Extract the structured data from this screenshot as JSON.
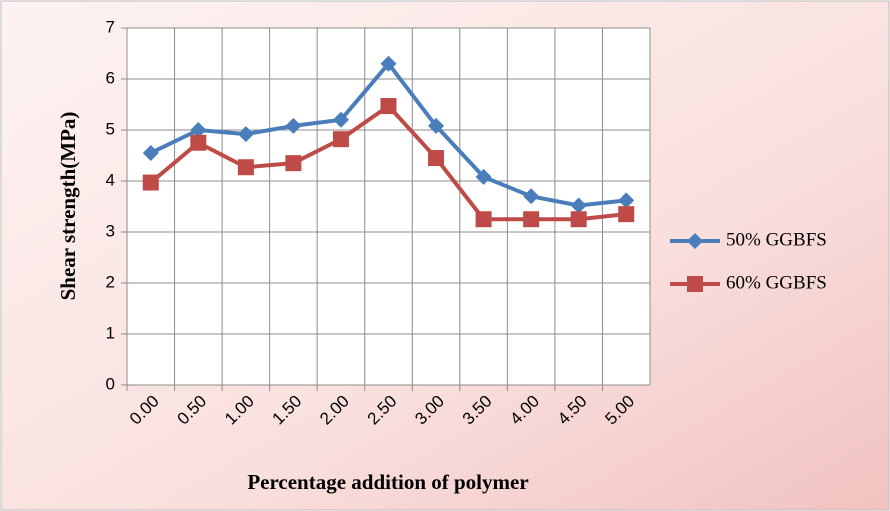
{
  "chart_data": {
    "type": "line",
    "xlabel": "Percentage addition of polymer",
    "ylabel": "Shear strength(MPa)",
    "categories": [
      "0.00",
      "0.50",
      "1.00",
      "1.50",
      "2.00",
      "2.50",
      "3.00",
      "3.50",
      "4.00",
      "4.50",
      "5.00"
    ],
    "series": [
      {
        "name": "50% GGBFS",
        "color": "#4a7ebb",
        "marker": "diamond",
        "values": [
          4.55,
          5.0,
          4.92,
          5.08,
          5.2,
          6.3,
          5.08,
          4.08,
          3.7,
          3.52,
          3.62
        ]
      },
      {
        "name": "60% GGBFS",
        "color": "#be4b48",
        "marker": "square",
        "values": [
          3.97,
          4.75,
          4.27,
          4.35,
          4.82,
          5.47,
          4.45,
          3.25,
          3.25,
          3.25,
          3.35
        ]
      }
    ],
    "ylim": [
      0,
      7
    ],
    "yticks": [
      0,
      1,
      2,
      3,
      4,
      5,
      6,
      7
    ],
    "grid": true,
    "legend": "right"
  }
}
